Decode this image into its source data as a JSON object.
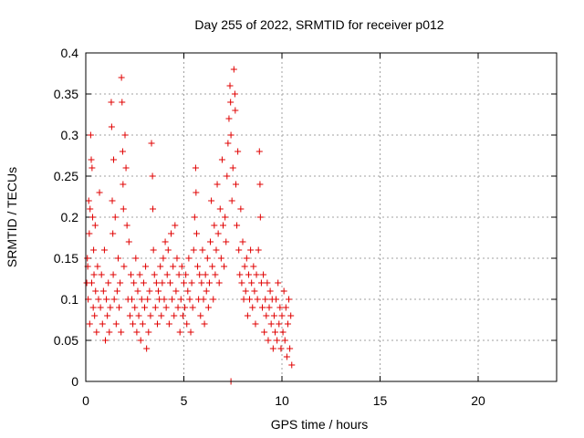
{
  "chart_data": {
    "type": "scatter",
    "title": "Day 255 of 2022, SRMTID for receiver p012",
    "xlabel": "GPS time / hours",
    "ylabel": "SRMTID / TECUs",
    "xlim": [
      0,
      24
    ],
    "ylim": [
      0,
      0.4
    ],
    "xticks": [
      0,
      5,
      10,
      15,
      20
    ],
    "yticks": [
      0,
      0.05,
      0.1,
      0.15,
      0.2,
      0.25,
      0.3,
      0.35,
      0.4
    ],
    "xtick_labels": [
      "0",
      "5",
      "10",
      "15",
      "20"
    ],
    "ytick_labels": [
      "0",
      "0.05",
      "0.1",
      "0.15",
      "0.2",
      "0.25",
      "0.3",
      "0.35",
      "0.4"
    ],
    "grid": true,
    "marker": "+",
    "color": "#e00000",
    "series": [
      {
        "name": "p012",
        "points": [
          [
            0.05,
            0.12
          ],
          [
            0.08,
            0.15
          ],
          [
            0.1,
            0.14
          ],
          [
            0.12,
            0.1
          ],
          [
            0.15,
            0.22
          ],
          [
            0.18,
            0.18
          ],
          [
            0.2,
            0.07
          ],
          [
            0.22,
            0.21
          ],
          [
            0.25,
            0.3
          ],
          [
            0.28,
            0.27
          ],
          [
            0.3,
            0.12
          ],
          [
            0.32,
            0.26
          ],
          [
            0.35,
            0.2
          ],
          [
            0.38,
            0.09
          ],
          [
            0.4,
            0.16
          ],
          [
            0.42,
            0.13
          ],
          [
            0.45,
            0.08
          ],
          [
            0.48,
            0.19
          ],
          [
            0.5,
            0.11
          ],
          [
            0.55,
            0.06
          ],
          [
            0.6,
            0.14
          ],
          [
            0.65,
            0.1
          ],
          [
            0.7,
            0.23
          ],
          [
            0.75,
            0.09
          ],
          [
            0.8,
            0.13
          ],
          [
            0.85,
            0.07
          ],
          [
            0.9,
            0.11
          ],
          [
            0.95,
            0.16
          ],
          [
            1.0,
            0.05
          ],
          [
            1.05,
            0.1
          ],
          [
            1.1,
            0.08
          ],
          [
            1.15,
            0.12
          ],
          [
            1.2,
            0.06
          ],
          [
            1.25,
            0.09
          ],
          [
            1.3,
            0.34
          ],
          [
            1.32,
            0.31
          ],
          [
            1.35,
            0.22
          ],
          [
            1.38,
            0.18
          ],
          [
            1.4,
            0.13
          ],
          [
            1.42,
            0.27
          ],
          [
            1.45,
            0.1
          ],
          [
            1.5,
            0.2
          ],
          [
            1.55,
            0.07
          ],
          [
            1.6,
            0.11
          ],
          [
            1.65,
            0.15
          ],
          [
            1.7,
            0.09
          ],
          [
            1.75,
            0.12
          ],
          [
            1.8,
            0.06
          ],
          [
            1.82,
            0.37
          ],
          [
            1.85,
            0.34
          ],
          [
            1.88,
            0.28
          ],
          [
            1.9,
            0.24
          ],
          [
            1.92,
            0.21
          ],
          [
            1.95,
            0.14
          ],
          [
            2.0,
            0.3
          ],
          [
            2.05,
            0.26
          ],
          [
            2.1,
            0.19
          ],
          [
            2.15,
            0.1
          ],
          [
            2.2,
            0.17
          ],
          [
            2.25,
            0.08
          ],
          [
            2.3,
            0.13
          ],
          [
            2.35,
            0.1
          ],
          [
            2.4,
            0.07
          ],
          [
            2.45,
            0.12
          ],
          [
            2.5,
            0.09
          ],
          [
            2.55,
            0.15
          ],
          [
            2.6,
            0.06
          ],
          [
            2.65,
            0.11
          ],
          [
            2.7,
            0.08
          ],
          [
            2.75,
            0.13
          ],
          [
            2.8,
            0.05
          ],
          [
            2.85,
            0.1
          ],
          [
            2.9,
            0.07
          ],
          [
            2.95,
            0.12
          ],
          [
            3.0,
            0.09
          ],
          [
            3.05,
            0.14
          ],
          [
            3.1,
            0.04
          ],
          [
            3.15,
            0.1
          ],
          [
            3.2,
            0.06
          ],
          [
            3.25,
            0.11
          ],
          [
            3.3,
            0.08
          ],
          [
            3.35,
            0.29
          ],
          [
            3.4,
            0.25
          ],
          [
            3.42,
            0.21
          ],
          [
            3.45,
            0.16
          ],
          [
            3.5,
            0.13
          ],
          [
            3.55,
            0.09
          ],
          [
            3.6,
            0.12
          ],
          [
            3.65,
            0.07
          ],
          [
            3.7,
            0.11
          ],
          [
            3.75,
            0.1
          ],
          [
            3.8,
            0.14
          ],
          [
            3.85,
            0.08
          ],
          [
            3.9,
            0.12
          ],
          [
            3.95,
            0.15
          ],
          [
            4.0,
            0.1
          ],
          [
            4.05,
            0.17
          ],
          [
            4.1,
            0.09
          ],
          [
            4.15,
            0.13
          ],
          [
            4.2,
            0.16
          ],
          [
            4.25,
            0.07
          ],
          [
            4.3,
            0.12
          ],
          [
            4.35,
            0.18
          ],
          [
            4.4,
            0.1
          ],
          [
            4.45,
            0.14
          ],
          [
            4.5,
            0.08
          ],
          [
            4.55,
            0.19
          ],
          [
            4.6,
            0.11
          ],
          [
            4.65,
            0.15
          ],
          [
            4.7,
            0.09
          ],
          [
            4.75,
            0.13
          ],
          [
            4.8,
            0.06
          ],
          [
            4.85,
            0.1
          ],
          [
            4.9,
            0.14
          ],
          [
            4.95,
            0.08
          ],
          [
            5.0,
            0.12
          ],
          [
            5.05,
            0.09
          ],
          [
            5.1,
            0.13
          ],
          [
            5.15,
            0.07
          ],
          [
            5.2,
            0.11
          ],
          [
            5.25,
            0.15
          ],
          [
            5.3,
            0.1
          ],
          [
            5.35,
            0.06
          ],
          [
            5.4,
            0.12
          ],
          [
            5.45,
            0.09
          ],
          [
            5.5,
            0.16
          ],
          [
            5.55,
            0.2
          ],
          [
            5.6,
            0.26
          ],
          [
            5.62,
            0.23
          ],
          [
            5.65,
            0.18
          ],
          [
            5.7,
            0.14
          ],
          [
            5.75,
            0.1
          ],
          [
            5.8,
            0.13
          ],
          [
            5.85,
            0.08
          ],
          [
            5.9,
            0.12
          ],
          [
            5.95,
            0.16
          ],
          [
            6.0,
            0.1
          ],
          [
            6.05,
            0.07
          ],
          [
            6.1,
            0.13
          ],
          [
            6.15,
            0.11
          ],
          [
            6.2,
            0.15
          ],
          [
            6.25,
            0.09
          ],
          [
            6.3,
            0.12
          ],
          [
            6.35,
            0.17
          ],
          [
            6.4,
            0.22
          ],
          [
            6.45,
            0.14
          ],
          [
            6.5,
            0.1
          ],
          [
            6.55,
            0.19
          ],
          [
            6.6,
            0.13
          ],
          [
            6.65,
            0.16
          ],
          [
            6.7,
            0.24
          ],
          [
            6.75,
            0.18
          ],
          [
            6.8,
            0.12
          ],
          [
            6.85,
            0.21
          ],
          [
            6.9,
            0.15
          ],
          [
            6.95,
            0.27
          ],
          [
            7.0,
            0.19
          ],
          [
            7.05,
            0.14
          ],
          [
            7.1,
            0.2
          ],
          [
            7.15,
            0.17
          ],
          [
            7.2,
            0.25
          ],
          [
            7.25,
            0.29
          ],
          [
            7.3,
            0.32
          ],
          [
            7.35,
            0.36
          ],
          [
            7.38,
            0.34
          ],
          [
            7.4,
            0.3
          ],
          [
            7.45,
            0.22
          ],
          [
            7.5,
            0.26
          ],
          [
            7.55,
            0.38
          ],
          [
            7.6,
            0.35
          ],
          [
            7.62,
            0.33
          ],
          [
            7.65,
            0.24
          ],
          [
            7.7,
            0.19
          ],
          [
            7.75,
            0.28
          ],
          [
            7.8,
            0.16
          ],
          [
            7.85,
            0.13
          ],
          [
            7.9,
            0.21
          ],
          [
            7.95,
            0.12
          ],
          [
            8.0,
            0.17
          ],
          [
            8.05,
            0.1
          ],
          [
            8.1,
            0.14
          ],
          [
            8.15,
            0.11
          ],
          [
            8.2,
            0.15
          ],
          [
            8.25,
            0.08
          ],
          [
            8.3,
            0.13
          ],
          [
            8.35,
            0.1
          ],
          [
            8.4,
            0.16
          ],
          [
            8.45,
            0.12
          ],
          [
            8.5,
            0.09
          ],
          [
            8.55,
            0.14
          ],
          [
            8.6,
            0.11
          ],
          [
            8.65,
            0.07
          ],
          [
            8.7,
            0.13
          ],
          [
            8.75,
            0.1
          ],
          [
            8.8,
            0.16
          ],
          [
            8.85,
            0.28
          ],
          [
            8.88,
            0.24
          ],
          [
            8.9,
            0.2
          ],
          [
            8.95,
            0.12
          ],
          [
            9.0,
            0.09
          ],
          [
            9.05,
            0.13
          ],
          [
            9.1,
            0.06
          ],
          [
            9.15,
            0.1
          ],
          [
            9.2,
            0.08
          ],
          [
            9.25,
            0.12
          ],
          [
            9.3,
            0.05
          ],
          [
            9.35,
            0.09
          ],
          [
            9.4,
            0.11
          ],
          [
            9.45,
            0.07
          ],
          [
            9.5,
            0.1
          ],
          [
            9.55,
            0.04
          ],
          [
            9.6,
            0.08
          ],
          [
            9.65,
            0.06
          ],
          [
            9.7,
            0.1
          ],
          [
            9.75,
            0.05
          ],
          [
            9.8,
            0.12
          ],
          [
            9.85,
            0.07
          ],
          [
            9.9,
            0.09
          ],
          [
            9.95,
            0.04
          ],
          [
            10.0,
            0.08
          ],
          [
            10.05,
            0.06
          ],
          [
            10.1,
            0.11
          ],
          [
            10.15,
            0.05
          ],
          [
            10.2,
            0.09
          ],
          [
            10.25,
            0.03
          ],
          [
            10.3,
            0.07
          ],
          [
            10.35,
            0.1
          ],
          [
            10.4,
            0.04
          ],
          [
            10.45,
            0.08
          ],
          [
            10.5,
            0.02
          ],
          [
            7.4,
            0.0
          ]
        ]
      }
    ]
  }
}
